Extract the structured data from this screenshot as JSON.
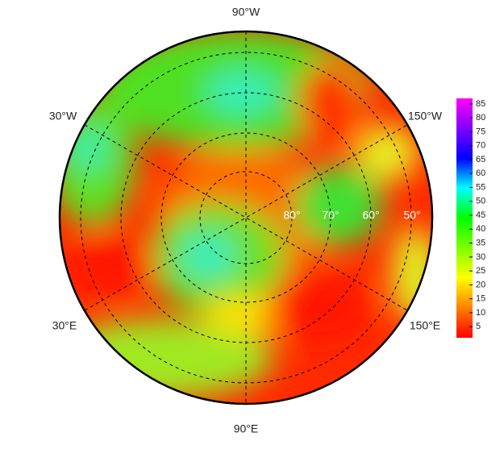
{
  "map": {
    "longitude_labels": [
      "90°W",
      "30°W",
      "150°W",
      "30°E",
      "150°E",
      "90°E"
    ],
    "latitude_labels": [
      "80°",
      "70°",
      "60°",
      "50°"
    ]
  },
  "colorbar": {
    "lim": [
      1,
      87
    ],
    "ticks": [
      5,
      10,
      15,
      20,
      25,
      30,
      35,
      40,
      45,
      50,
      55,
      60,
      65,
      70,
      75,
      80,
      85
    ],
    "colors": [
      "#ff0000",
      "#ff8000",
      "#ffff00",
      "#80ff00",
      "#00ff00",
      "#00ffff",
      "#0000ff",
      "#8000ff",
      "#ff00ff"
    ]
  }
}
